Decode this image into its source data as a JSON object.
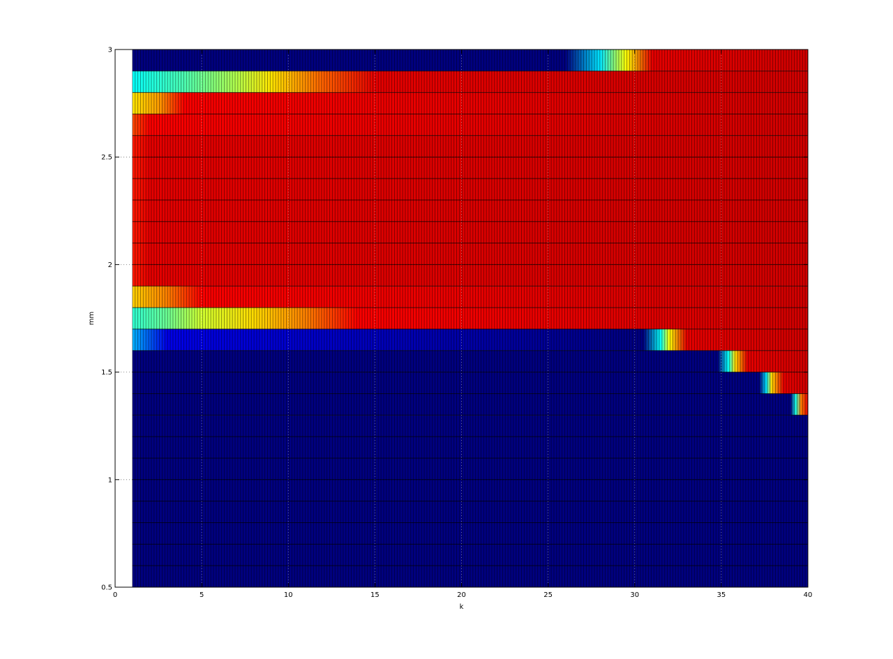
{
  "chart_data": {
    "type": "heatmap",
    "title": "",
    "xlabel": "k",
    "ylabel": "mm",
    "xlim": [
      0,
      40
    ],
    "ylim": [
      0.5,
      3
    ],
    "x_ticks": [
      0,
      5,
      10,
      15,
      20,
      25,
      30,
      35,
      40
    ],
    "y_ticks": [
      0.5,
      1,
      1.5,
      2,
      2.5,
      3
    ],
    "x_tick_labels": [
      "0",
      "5",
      "10",
      "15",
      "20",
      "25",
      "30",
      "35",
      "40"
    ],
    "y_tick_labels": [
      "0.5",
      "1",
      "1.5",
      "2",
      "2.5",
      "3"
    ],
    "grid": true,
    "colormap": "jet",
    "x_cells": {
      "start": 1,
      "end": 40,
      "count": 39
    },
    "rows": [
      {
        "y0": 2.9,
        "y1": 3.0,
        "stops": [
          [
            1,
            0.0
          ],
          [
            26,
            0.0
          ],
          [
            28,
            0.35
          ],
          [
            29.5,
            0.62
          ],
          [
            31,
            0.9
          ],
          [
            40,
            0.92
          ]
        ]
      },
      {
        "y0": 2.8,
        "y1": 2.9,
        "stops": [
          [
            1,
            0.38
          ],
          [
            4,
            0.45
          ],
          [
            7,
            0.55
          ],
          [
            9,
            0.65
          ],
          [
            12,
            0.78
          ],
          [
            15,
            0.9
          ],
          [
            40,
            0.92
          ]
        ]
      },
      {
        "y0": 2.7,
        "y1": 2.8,
        "stops": [
          [
            1,
            0.65
          ],
          [
            2.5,
            0.72
          ],
          [
            4,
            0.88
          ],
          [
            40,
            0.92
          ]
        ]
      },
      {
        "y0": 2.6,
        "y1": 2.7,
        "stops": [
          [
            1,
            0.8
          ],
          [
            2,
            0.88
          ],
          [
            40,
            0.92
          ]
        ]
      },
      {
        "y0": 1.9,
        "y1": 2.6,
        "stops": [
          [
            1,
            0.85
          ],
          [
            2,
            0.9
          ],
          [
            40,
            0.92
          ]
        ]
      },
      {
        "y0": 1.8,
        "y1": 1.9,
        "stops": [
          [
            1,
            0.67
          ],
          [
            3,
            0.75
          ],
          [
            5,
            0.88
          ],
          [
            40,
            0.92
          ]
        ]
      },
      {
        "y0": 1.7,
        "y1": 1.8,
        "stops": [
          [
            1,
            0.42
          ],
          [
            3,
            0.48
          ],
          [
            5,
            0.58
          ],
          [
            8,
            0.66
          ],
          [
            11,
            0.75
          ],
          [
            14,
            0.88
          ],
          [
            40,
            0.92
          ]
        ]
      },
      {
        "y0": 1.6,
        "y1": 1.7,
        "stops": [
          [
            1,
            0.3
          ],
          [
            3,
            0.1
          ],
          [
            30.5,
            0.0
          ],
          [
            31.5,
            0.38
          ],
          [
            32,
            0.62
          ],
          [
            33,
            0.9
          ],
          [
            40,
            0.92
          ]
        ]
      },
      {
        "y0": 1.5,
        "y1": 1.6,
        "stops": [
          [
            1,
            0.0
          ],
          [
            34.8,
            0.0
          ],
          [
            35.4,
            0.38
          ],
          [
            35.8,
            0.66
          ],
          [
            36.5,
            0.9
          ],
          [
            40,
            0.92
          ]
        ]
      },
      {
        "y0": 1.4,
        "y1": 1.5,
        "stops": [
          [
            1,
            0.0
          ],
          [
            37.2,
            0.0
          ],
          [
            37.6,
            0.35
          ],
          [
            37.9,
            0.66
          ],
          [
            38.6,
            0.9
          ],
          [
            40,
            0.92
          ]
        ]
      },
      {
        "y0": 1.3,
        "y1": 1.4,
        "stops": [
          [
            1,
            0.0
          ],
          [
            39.0,
            0.0
          ],
          [
            39.3,
            0.4
          ],
          [
            39.6,
            0.75
          ],
          [
            40,
            0.9
          ]
        ]
      },
      {
        "y0": 0.5,
        "y1": 1.3,
        "stops": [
          [
            1,
            0.0
          ],
          [
            40,
            0.0
          ]
        ]
      }
    ]
  }
}
